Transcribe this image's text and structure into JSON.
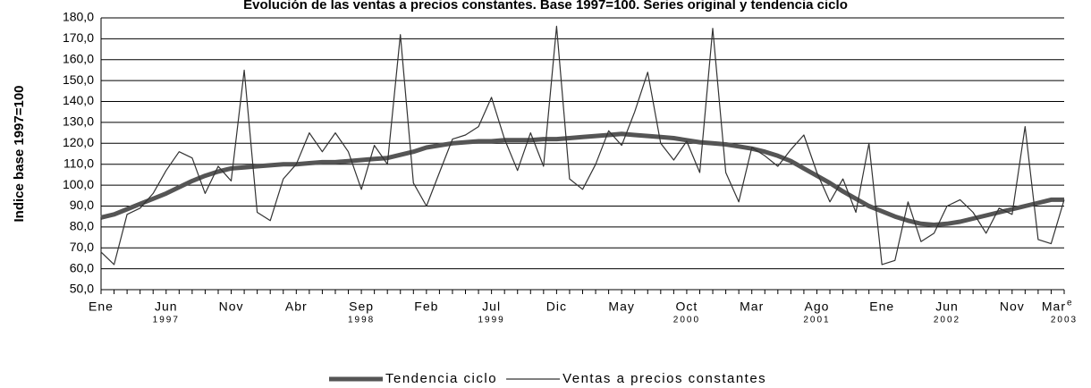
{
  "chart_data": {
    "type": "line",
    "title": "Evolución de las ventas a precios constantes. Base 1997=100. Series original y tendencia ciclo",
    "y_label": "Indice base 1997=100",
    "categories": [
      "Ene",
      null,
      null,
      null,
      null,
      "Jun",
      null,
      null,
      null,
      null,
      "Nov",
      null,
      null,
      null,
      null,
      "Abr",
      null,
      null,
      null,
      null,
      "Sep",
      null,
      null,
      null,
      null,
      "Feb",
      null,
      null,
      null,
      null,
      "Jul",
      null,
      null,
      null,
      null,
      "Dic",
      null,
      null,
      null,
      null,
      "May",
      null,
      null,
      null,
      null,
      "Oct",
      null,
      null,
      null,
      null,
      "Mar",
      null,
      null,
      null,
      null,
      "Ago",
      null,
      null,
      null,
      null,
      "Ene",
      null,
      null,
      null,
      null,
      "Jun",
      null,
      null,
      null,
      null,
      "Nov",
      null,
      null,
      null,
      "Mar"
    ],
    "last_label_superscript": "e",
    "years": [
      null,
      null,
      null,
      null,
      null,
      "1997",
      null,
      null,
      null,
      null,
      null,
      null,
      null,
      null,
      null,
      null,
      null,
      null,
      null,
      null,
      "1998",
      null,
      null,
      null,
      null,
      null,
      null,
      null,
      null,
      null,
      "1999",
      null,
      null,
      null,
      null,
      null,
      null,
      null,
      null,
      null,
      null,
      null,
      null,
      null,
      null,
      "2000",
      null,
      null,
      null,
      null,
      null,
      null,
      null,
      null,
      null,
      "2001",
      null,
      null,
      null,
      null,
      null,
      null,
      null,
      null,
      null,
      "2002",
      null,
      null,
      null,
      null,
      null,
      null,
      null,
      null,
      "2003"
    ],
    "ylim": [
      50,
      180
    ],
    "yticks": [
      {
        "value": 50,
        "label": "50,0"
      },
      {
        "value": 60,
        "label": "60,0"
      },
      {
        "value": 70,
        "label": "70,0"
      },
      {
        "value": 80,
        "label": "80,0"
      },
      {
        "value": 90,
        "label": "90,0"
      },
      {
        "value": 100,
        "label": "100,0"
      },
      {
        "value": 110,
        "label": "110,0"
      },
      {
        "value": 120,
        "label": "120,0"
      },
      {
        "value": 130,
        "label": "130,0"
      },
      {
        "value": 140,
        "label": "140,0"
      },
      {
        "value": 150,
        "label": "150,0"
      },
      {
        "value": 160,
        "label": "160,0"
      },
      {
        "value": 170,
        "label": "170,0"
      },
      {
        "value": 180,
        "label": "180,0"
      }
    ],
    "grid": true,
    "legend": "bottom",
    "series": [
      {
        "name": "Tendencia ciclo",
        "color": "#555555",
        "width": 5,
        "values": [
          84.5,
          86,
          88.5,
          91,
          93.5,
          96,
          99,
          102,
          104.5,
          106.5,
          108,
          108.5,
          109,
          109.5,
          110,
          110,
          110.5,
          111,
          111,
          111.5,
          112,
          112.5,
          113,
          114.5,
          116,
          118,
          119,
          120,
          120.5,
          121,
          121,
          121.5,
          121.5,
          121.5,
          122,
          122,
          122.5,
          123,
          123.5,
          124,
          124.5,
          124,
          123.5,
          123,
          122.5,
          121.5,
          120.5,
          120,
          119.5,
          118.5,
          117.5,
          116,
          114,
          111.5,
          108,
          104.5,
          101,
          97,
          93.5,
          90,
          87.5,
          85,
          83,
          81.5,
          81,
          81.5,
          82.5,
          84,
          85.5,
          87,
          88.5,
          90,
          91.5,
          93,
          93
        ]
      },
      {
        "name": "Ventas a precios constantes",
        "color": "#333333",
        "width": 1.2,
        "values": [
          68,
          62,
          86,
          89,
          96,
          107,
          116,
          113,
          96,
          109,
          102,
          155,
          87,
          83,
          103,
          110,
          125,
          116,
          125,
          116,
          98,
          119,
          110,
          172,
          101,
          90,
          106,
          122,
          124,
          128,
          142,
          122,
          107,
          125,
          109,
          176,
          103,
          98,
          110,
          126,
          119,
          135,
          154,
          120,
          112,
          121,
          106,
          175,
          106,
          92,
          118,
          114,
          109,
          117,
          124,
          106,
          92,
          103,
          87,
          120,
          62,
          64,
          92,
          73,
          77,
          90,
          93,
          87,
          77,
          89,
          86,
          128,
          74,
          72,
          93
        ]
      }
    ]
  }
}
